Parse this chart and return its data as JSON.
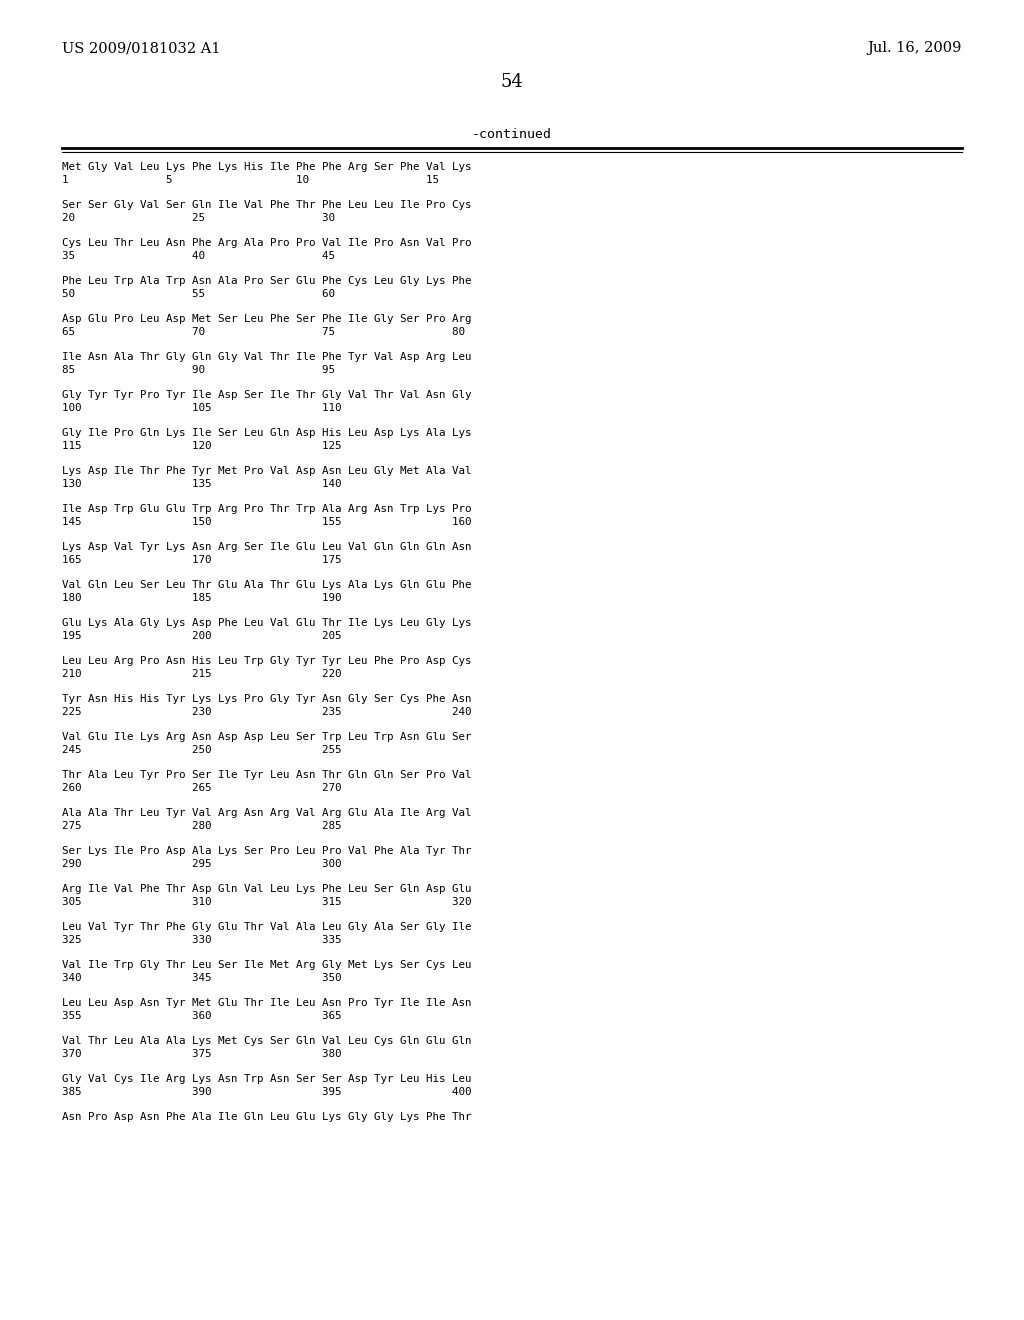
{
  "header_left": "US 2009/0181032 A1",
  "header_right": "Jul. 16, 2009",
  "page_number": "54",
  "continued_label": "-continued",
  "background_color": "#ffffff",
  "text_color": "#000000",
  "sequence_data": [
    [
      "Met Gly Val Leu Lys Phe Lys His Ile Phe Phe Arg Ser Phe Val Lys",
      "1               5                   10                  15"
    ],
    [
      "Ser Ser Gly Val Ser Gln Ile Val Phe Thr Phe Leu Leu Ile Pro Cys",
      "20                  25                  30"
    ],
    [
      "Cys Leu Thr Leu Asn Phe Arg Ala Pro Pro Val Ile Pro Asn Val Pro",
      "35                  40                  45"
    ],
    [
      "Phe Leu Trp Ala Trp Asn Ala Pro Ser Glu Phe Cys Leu Gly Lys Phe",
      "50                  55                  60"
    ],
    [
      "Asp Glu Pro Leu Asp Met Ser Leu Phe Ser Phe Ile Gly Ser Pro Arg",
      "65                  70                  75                  80"
    ],
    [
      "Ile Asn Ala Thr Gly Gln Gly Val Thr Ile Phe Tyr Val Asp Arg Leu",
      "85                  90                  95"
    ],
    [
      "Gly Tyr Tyr Pro Tyr Ile Asp Ser Ile Thr Gly Val Thr Val Asn Gly",
      "100                 105                 110"
    ],
    [
      "Gly Ile Pro Gln Lys Ile Ser Leu Gln Asp His Leu Asp Lys Ala Lys",
      "115                 120                 125"
    ],
    [
      "Lys Asp Ile Thr Phe Tyr Met Pro Val Asp Asn Leu Gly Met Ala Val",
      "130                 135                 140"
    ],
    [
      "Ile Asp Trp Glu Glu Trp Arg Pro Thr Trp Ala Arg Asn Trp Lys Pro",
      "145                 150                 155                 160"
    ],
    [
      "Lys Asp Val Tyr Lys Asn Arg Ser Ile Glu Leu Val Gln Gln Gln Asn",
      "165                 170                 175"
    ],
    [
      "Val Gln Leu Ser Leu Thr Glu Ala Thr Glu Lys Ala Lys Gln Glu Phe",
      "180                 185                 190"
    ],
    [
      "Glu Lys Ala Gly Lys Asp Phe Leu Val Glu Thr Ile Lys Leu Gly Lys",
      "195                 200                 205"
    ],
    [
      "Leu Leu Arg Pro Asn His Leu Trp Gly Tyr Tyr Leu Phe Pro Asp Cys",
      "210                 215                 220"
    ],
    [
      "Tyr Asn His His Tyr Lys Lys Pro Gly Tyr Asn Gly Ser Cys Phe Asn",
      "225                 230                 235                 240"
    ],
    [
      "Val Glu Ile Lys Arg Asn Asp Asp Leu Ser Trp Leu Trp Asn Glu Ser",
      "245                 250                 255"
    ],
    [
      "Thr Ala Leu Tyr Pro Ser Ile Tyr Leu Asn Thr Gln Gln Ser Pro Val",
      "260                 265                 270"
    ],
    [
      "Ala Ala Thr Leu Tyr Val Arg Asn Arg Val Arg Glu Ala Ile Arg Val",
      "275                 280                 285"
    ],
    [
      "Ser Lys Ile Pro Asp Ala Lys Ser Pro Leu Pro Val Phe Ala Tyr Thr",
      "290                 295                 300"
    ],
    [
      "Arg Ile Val Phe Thr Asp Gln Val Leu Lys Phe Leu Ser Gln Asp Glu",
      "305                 310                 315                 320"
    ],
    [
      "Leu Val Tyr Thr Phe Gly Glu Thr Val Ala Leu Gly Ala Ser Gly Ile",
      "325                 330                 335"
    ],
    [
      "Val Ile Trp Gly Thr Leu Ser Ile Met Arg Gly Met Lys Ser Cys Leu",
      "340                 345                 350"
    ],
    [
      "Leu Leu Asp Asn Tyr Met Glu Thr Ile Leu Asn Pro Tyr Ile Ile Asn",
      "355                 360                 365"
    ],
    [
      "Val Thr Leu Ala Ala Lys Met Cys Ser Gln Val Leu Cys Gln Glu Gln",
      "370                 375                 380"
    ],
    [
      "Gly Val Cys Ile Arg Lys Asn Trp Asn Ser Ser Asp Tyr Leu His Leu",
      "385                 390                 395                 400"
    ],
    [
      "Asn Pro Asp Asn Phe Ala Ile Gln Leu Glu Lys Gly Gly Lys Phe Thr",
      ""
    ]
  ]
}
